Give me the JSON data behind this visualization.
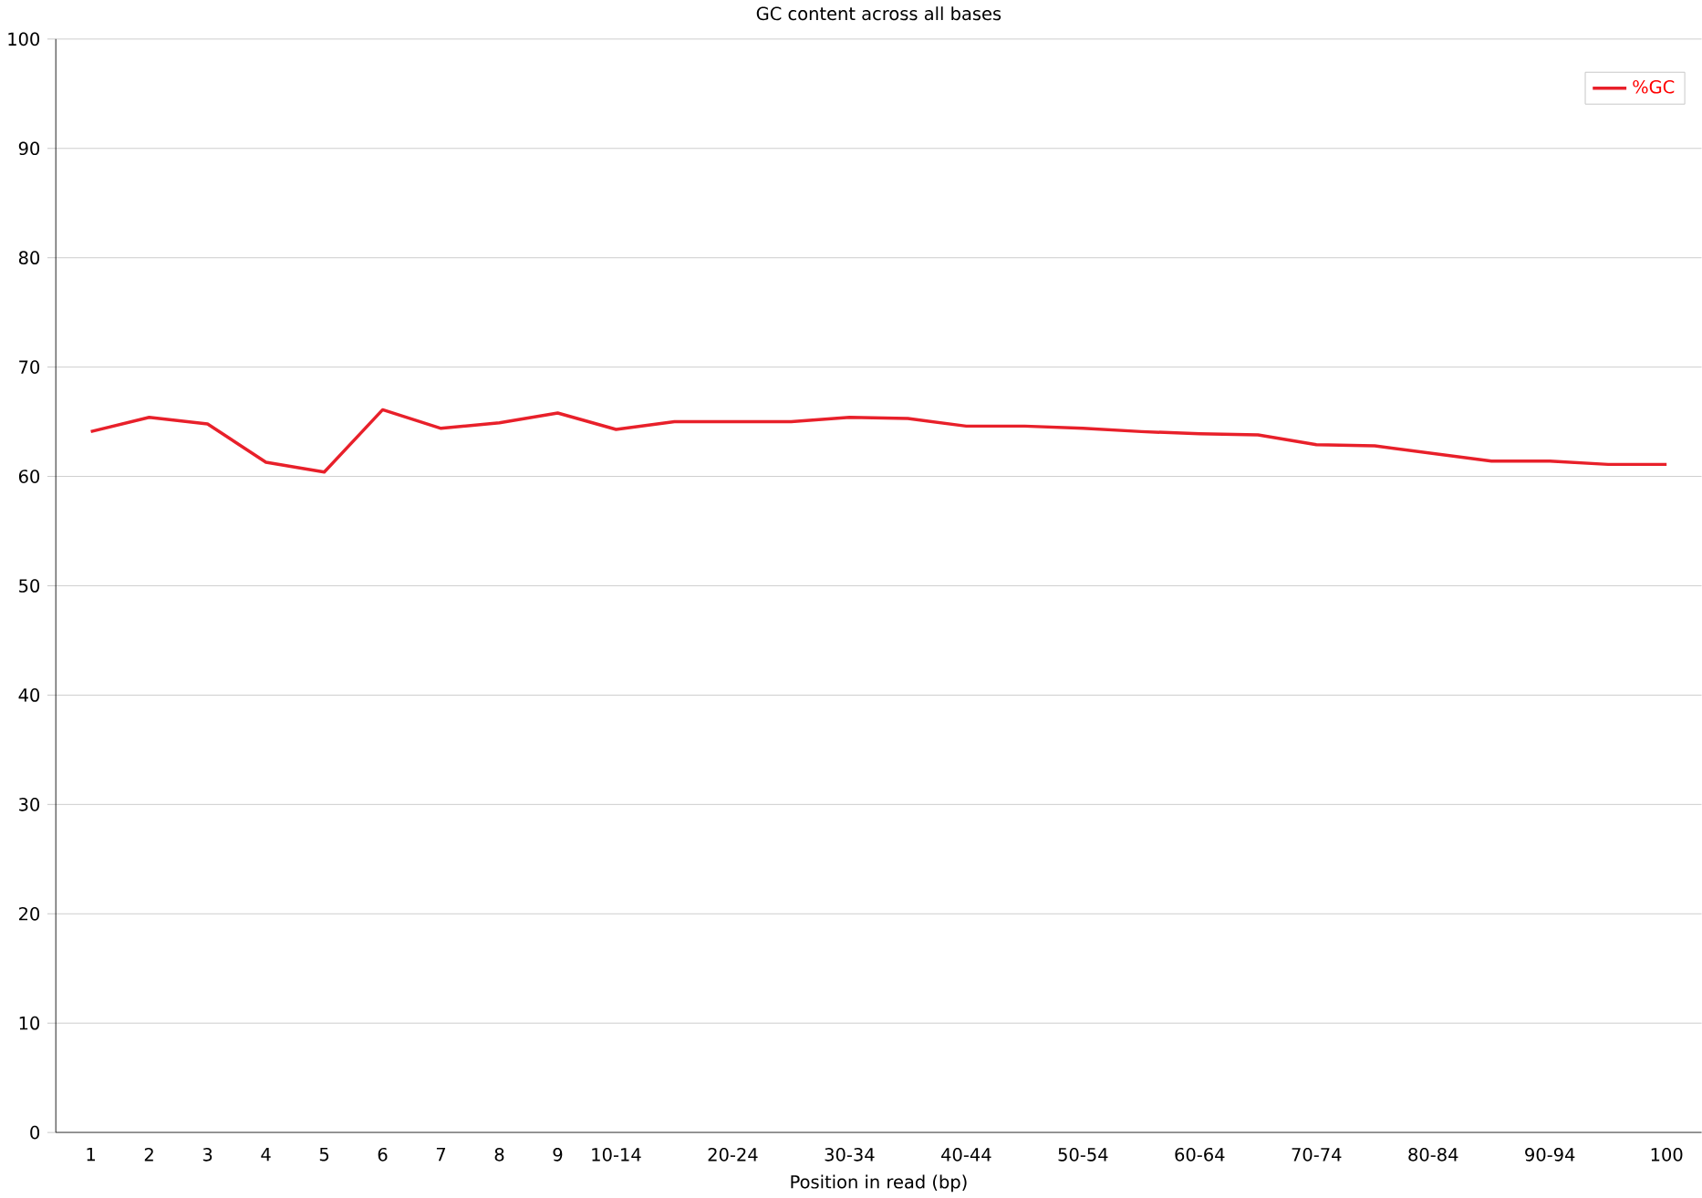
{
  "chart_data": {
    "type": "line",
    "title": "GC content across all bases",
    "xlabel": "Position in read (bp)",
    "categories": [
      "1",
      "2",
      "3",
      "4",
      "5",
      "6",
      "7",
      "8",
      "9",
      "10-14",
      null,
      "20-24",
      null,
      "30-34",
      null,
      "40-44",
      null,
      "50-54",
      null,
      "60-64",
      null,
      "70-74",
      null,
      "80-84",
      null,
      "90-94",
      null,
      "100"
    ],
    "series": [
      {
        "name": "%GC",
        "color": "#e8202a",
        "values": [
          64.1,
          65.4,
          64.8,
          61.3,
          60.4,
          66.1,
          64.4,
          64.9,
          65.8,
          64.3,
          65.0,
          65.0,
          65.0,
          65.4,
          65.3,
          64.6,
          64.6,
          64.4,
          64.1,
          63.9,
          63.8,
          62.9,
          62.8,
          62.1,
          61.4,
          61.4,
          61.1,
          61.1
        ]
      }
    ],
    "ylim": [
      0,
      100
    ],
    "yticks": [
      0,
      10,
      20,
      30,
      40,
      50,
      60,
      70,
      80,
      90,
      100
    ],
    "grid": "y",
    "legend": "top right",
    "marker": "none",
    "line_style": "solid"
  }
}
